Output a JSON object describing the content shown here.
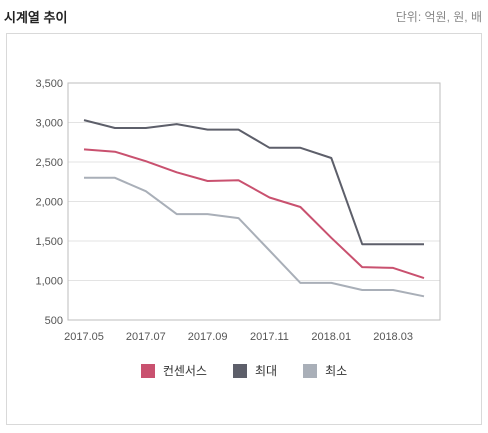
{
  "header": {
    "title": "시계열 추이",
    "unit": "단위: 억원, 원, 배"
  },
  "chart_data": {
    "type": "line",
    "title": "",
    "xlabel": "",
    "ylabel": "",
    "x": [
      "2017.05",
      "2017.06",
      "2017.07",
      "2017.08",
      "2017.09",
      "2017.10",
      "2017.11",
      "2017.12",
      "2018.01",
      "2018.02",
      "2018.03",
      "2018.04"
    ],
    "x_tick_labels": [
      "2017.05",
      "2017.07",
      "2017.09",
      "2017.11",
      "2018.01",
      "2018.03"
    ],
    "ylim": [
      500,
      3500
    ],
    "y_ticks": [
      500,
      1000,
      1500,
      2000,
      2500,
      3000,
      3500
    ],
    "y_tick_labels": [
      "500",
      "1,000",
      "1,500",
      "2,000",
      "2,500",
      "3,000",
      "3,500"
    ],
    "grid": true,
    "legend_position": "bottom",
    "series": [
      {
        "name": "컨센서스",
        "color": "#c9516f",
        "values": [
          2660,
          2630,
          2510,
          2370,
          2260,
          2270,
          2050,
          1930,
          1540,
          1170,
          1160,
          1030
        ]
      },
      {
        "name": "최대",
        "color": "#5d5f6a",
        "values": [
          3030,
          2930,
          2930,
          2980,
          2910,
          2910,
          2680,
          2680,
          2550,
          1460,
          1460,
          1460
        ]
      },
      {
        "name": "최소",
        "color": "#a9afb8",
        "values": [
          2300,
          2300,
          2130,
          1840,
          1840,
          1790,
          1380,
          970,
          970,
          880,
          880,
          800
        ]
      }
    ]
  }
}
